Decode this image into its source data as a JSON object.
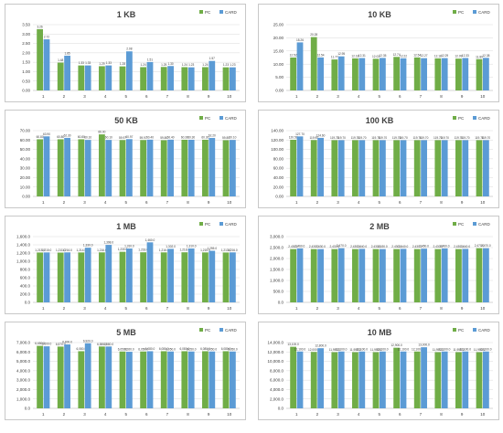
{
  "legend_labels": [
    "PC",
    "CARD"
  ],
  "colors": {
    "pc": "#70ad47",
    "card": "#5b9bd5",
    "grid": "#d9d9d9",
    "text": "#404040"
  },
  "chart_data": [
    {
      "type": "bar",
      "title": "1 KB",
      "legend": "top-right",
      "categories": [
        "1",
        "2",
        "3",
        "4",
        "5",
        "6",
        "7",
        "8",
        "9",
        "10"
      ],
      "ylim": [
        0,
        3.5
      ],
      "yticks": [
        "0.00",
        "0.50",
        "1.00",
        "1.50",
        "2.00",
        "2.50",
        "3.00",
        "3.50"
      ],
      "series": [
        {
          "name": "PC",
          "values": [
            3.26,
            1.48,
            1.33,
            1.29,
            1.28,
            1.24,
            1.25,
            1.24,
            1.24,
            1.23
          ],
          "labels": [
            "3.26",
            "1.48",
            "1.33",
            "1.29",
            "1.28",
            "1.24",
            "1.25",
            "1.24",
            "1.24",
            "1.23"
          ]
        },
        {
          "name": "CARD",
          "values": [
            2.72,
            1.85,
            1.33,
            1.33,
            2.08,
            1.51,
            1.3,
            1.23,
            1.57,
            1.23
          ],
          "labels": [
            "2.72",
            "1.85",
            "1.33",
            "1.33",
            "2.08",
            "1.51",
            "1.30",
            "1.23",
            "1.57",
            "1.23"
          ]
        }
      ]
    },
    {
      "type": "bar",
      "title": "10 KB",
      "legend": "top-right",
      "categories": [
        "1",
        "2",
        "3",
        "4",
        "5",
        "6",
        "7",
        "8",
        "9",
        "10"
      ],
      "ylim": [
        0,
        25
      ],
      "yticks": [
        "0.00",
        "5.00",
        "10.00",
        "15.00",
        "20.00",
        "25.00"
      ],
      "series": [
        {
          "name": "PC",
          "values": [
            12.52,
            20.28,
            11.77,
            12.18,
            12.03,
            12.74,
            12.54,
            12.18,
            12.09,
            11.89
          ],
          "labels": [
            "12.52",
            "20.28",
            "11.77",
            "12.18",
            "12.03",
            "12.74",
            "12.54",
            "12.18",
            "12.09",
            "11.89"
          ]
        },
        {
          "name": "CARD",
          "values": [
            18.26,
            12.54,
            12.95,
            12.31,
            12.35,
            12.22,
            12.27,
            12.29,
            12.33,
            12.38
          ],
          "labels": [
            "18.26",
            "12.54",
            "12.95",
            "12.31",
            "12.35",
            "12.22",
            "12.27",
            "12.29",
            "12.33",
            "12.38"
          ]
        }
      ]
    },
    {
      "type": "bar",
      "title": "50 KB",
      "legend": "top-right",
      "categories": [
        "1",
        "2",
        "3",
        "4",
        "5",
        "6",
        "7",
        "8",
        "9",
        "10"
      ],
      "ylim": [
        0,
        70
      ],
      "yticks": [
        "0.00",
        "10.00",
        "20.00",
        "30.00",
        "40.00",
        "50.00",
        "60.00",
        "70.00"
      ],
      "series": [
        {
          "name": "PC",
          "values": [
            60.8,
            60.8,
            60.8,
            66.0,
            59.97,
            59.97,
            59.8,
            60.3,
            60.3,
            59.8
          ],
          "labels": [
            "60.80",
            "60.80",
            "60.80",
            "66.00",
            "59.97",
            "59.97",
            "59.80",
            "60.30",
            "60.30",
            "59.80"
          ]
        },
        {
          "name": "CARD",
          "values": [
            63.9,
            62.3,
            60.1,
            60.1,
            60.97,
            60.4,
            60.4,
            60.3,
            62.2,
            60.1
          ],
          "labels": [
            "63.90",
            "62.30",
            "60.10",
            "60.10",
            "60.97",
            "60.40",
            "60.40",
            "60.30",
            "62.20",
            "60.10"
          ]
        }
      ]
    },
    {
      "type": "bar",
      "title": "100 KB",
      "legend": "top-right",
      "categories": [
        "1",
        "2",
        "3",
        "4",
        "5",
        "6",
        "7",
        "8",
        "9",
        "10"
      ],
      "ylim": [
        0,
        140
      ],
      "yticks": [
        "0.00",
        "20.00",
        "40.00",
        "60.00",
        "80.00",
        "100.00",
        "120.00",
        "140.00"
      ],
      "series": [
        {
          "name": "PC",
          "values": [
            120.5,
            119.9,
            119.7,
            119.7,
            119.7,
            119.7,
            119.7,
            119.7,
            119.7,
            119.7
          ],
          "labels": [
            "120.50",
            "119.90",
            "119.70",
            "119.70",
            "119.70",
            "119.70",
            "119.70",
            "119.70",
            "119.70",
            "119.70"
          ]
        },
        {
          "name": "CARD",
          "values": [
            127.7,
            124.6,
            119.7,
            119.7,
            119.7,
            119.7,
            119.7,
            119.7,
            119.7,
            119.7
          ],
          "labels": [
            "127.70",
            "124.60",
            "119.70",
            "119.70",
            "119.70",
            "119.70",
            "119.70",
            "119.70",
            "119.70",
            "119.70"
          ]
        }
      ]
    },
    {
      "type": "bar",
      "title": "1 MB",
      "legend": "top-right",
      "categories": [
        "1",
        "2",
        "3",
        "4",
        "5",
        "6",
        "7",
        "8",
        "9",
        "10"
      ],
      "ylim": [
        0,
        1600
      ],
      "yticks": [
        "0.0",
        "200.0",
        "400.0",
        "600.0",
        "800.0",
        "1,000.0",
        "1,200.0",
        "1,400.0",
        "1,600.0"
      ],
      "series": [
        {
          "name": "PC",
          "values": [
            1213,
            1211,
            1214,
            1216,
            1230,
            1218,
            1216,
            1218,
            1215,
            1213
          ],
          "labels": [
            "1,213.0",
            "1,211.0",
            "1,214.0",
            "1,216.0",
            "1,230.0",
            "1,218.0",
            "1,216.0",
            "1,218.0",
            "1,215.0",
            "1,213.0"
          ]
        },
        {
          "name": "CARD",
          "values": [
            1215,
            1216,
            1330,
            1398,
            1310,
            1460,
            1302,
            1310,
            1255,
            1216
          ],
          "labels": [
            "1,215.0",
            "1,216.0",
            "1,330.0",
            "1,398.0",
            "1,310.0",
            "1,460.0",
            "1,302.0",
            "1,310.0",
            "1,255.0",
            "1,216.0"
          ]
        }
      ]
    },
    {
      "type": "bar",
      "title": "2 MB",
      "legend": "top-right",
      "categories": [
        "1",
        "2",
        "3",
        "4",
        "5",
        "6",
        "7",
        "8",
        "9",
        "10"
      ],
      "ylim": [
        0,
        3000
      ],
      "yticks": [
        "0.0",
        "500.0",
        "1,000.0",
        "1,500.0",
        "2,000.0",
        "2,500.0",
        "3,000.0"
      ],
      "series": [
        {
          "name": "PC",
          "values": [
            2430,
            2430,
            2430,
            2430,
            2430,
            2430,
            2430,
            2430,
            2430,
            2470
          ],
          "labels": [
            "2,430.0",
            "2,430.0",
            "2,430.0",
            "2,430.0",
            "2,430.0",
            "2,430.0",
            "2,430.0",
            "2,430.0",
            "2,430.0",
            "2,470.0"
          ]
        },
        {
          "name": "CARD",
          "values": [
            2460,
            2430,
            2470,
            2440,
            2430,
            2440,
            2450,
            2460,
            2440,
            2470
          ],
          "labels": [
            "2,460.0",
            "2,430.0",
            "2,470.0",
            "2,440.0",
            "2,430.0",
            "2,440.0",
            "2,450.0",
            "2,460.0",
            "2,440.0",
            "2,470.0"
          ]
        }
      ]
    },
    {
      "type": "bar",
      "title": "5 MB",
      "legend": "top-right",
      "categories": [
        "1",
        "2",
        "3",
        "4",
        "5",
        "6",
        "7",
        "8",
        "9",
        "10"
      ],
      "ylim": [
        0,
        7000
      ],
      "yticks": [
        "0.0",
        "1,000.0",
        "2,000.0",
        "3,000.0",
        "4,000.0",
        "5,000.0",
        "6,000.0",
        "7,000.0"
      ],
      "series": [
        {
          "name": "PC",
          "values": [
            6650,
            6570,
            6080,
            6580,
            6050,
            6050,
            6080,
            6080,
            6080,
            6080
          ],
          "labels": [
            "6,650.0",
            "6,570.0",
            "6,080.0",
            "6,580.0",
            "6,050.0",
            "6,050.0",
            "6,080.0",
            "6,080.0",
            "6,080.0",
            "6,080.0"
          ]
        },
        {
          "name": "CARD",
          "values": [
            6600,
            6800,
            6920,
            6580,
            6020,
            6080,
            6050,
            6050,
            6050,
            6050
          ],
          "labels": [
            "6,600.0",
            "6,800.0",
            "6,920.0",
            "6,580.0",
            "6,020.0",
            "6,080.0",
            "6,050.0",
            "6,050.0",
            "6,050.0",
            "6,050.0"
          ]
        }
      ]
    },
    {
      "type": "bar",
      "title": "10 MB",
      "legend": "top-right",
      "categories": [
        "1",
        "2",
        "3",
        "4",
        "5",
        "6",
        "7",
        "8",
        "9",
        "10"
      ],
      "ylim": [
        0,
        14000
      ],
      "yticks": [
        "0.0",
        "2,000.0",
        "4,000.0",
        "6,000.0",
        "8,000.0",
        "10,000.0",
        "12,000.0",
        "14,000.0"
      ],
      "series": [
        {
          "name": "PC",
          "values": [
            13100,
            12000,
            11950,
            11950,
            11950,
            12900,
            12100,
            11950,
            11950,
            11950
          ],
          "labels": [
            "13,100.0",
            "12,000.0",
            "11,950.0",
            "11,950.0",
            "11,950.0",
            "12,900.0",
            "12,100.0",
            "11,950.0",
            "11,950.0",
            "11,950.0"
          ]
        },
        {
          "name": "CARD",
          "values": [
            12100,
            12800,
            12100,
            12100,
            12100,
            12100,
            13000,
            12100,
            12100,
            12100
          ],
          "labels": [
            "12,100.0",
            "12,800.0",
            "12,100.0",
            "12,100.0",
            "12,100.0",
            "12,100.0",
            "13,000.0",
            "12,100.0",
            "12,100.0",
            "12,100.0"
          ]
        }
      ]
    }
  ]
}
